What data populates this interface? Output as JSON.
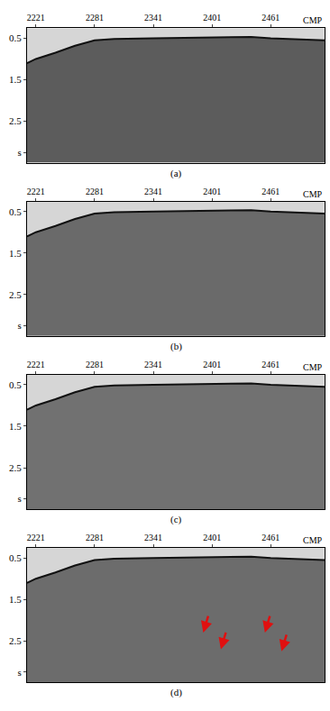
{
  "chart_data": [
    {
      "type": "area",
      "caption": "(a)",
      "x_label": "CMP",
      "color": "#5c5c5c",
      "x": [
        2212,
        2221,
        2241,
        2261,
        2281,
        2301,
        2341,
        2401,
        2441,
        2461,
        2516
      ],
      "values": [
        1.1,
        1.0,
        0.85,
        0.68,
        0.55,
        0.52,
        0.5,
        0.48,
        0.47,
        0.5,
        0.55
      ],
      "xlim": [
        2212,
        2516
      ],
      "xticks": [
        2221,
        2281,
        2341,
        2401,
        2461
      ],
      "ylim": [
        0.26,
        3.5
      ],
      "yticks": [
        0.5,
        1.5,
        2.5,
        {
          "value": 3.25,
          "label": "s"
        }
      ]
    },
    {
      "type": "area",
      "caption": "(b)",
      "x_label": "CMP",
      "color": "#6a6a6a",
      "x": [
        2212,
        2221,
        2241,
        2261,
        2281,
        2301,
        2341,
        2401,
        2441,
        2461,
        2516
      ],
      "values": [
        1.1,
        1.0,
        0.85,
        0.68,
        0.55,
        0.52,
        0.5,
        0.48,
        0.47,
        0.5,
        0.55
      ],
      "xlim": [
        2212,
        2516
      ],
      "xticks": [
        2221,
        2281,
        2341,
        2401,
        2461
      ],
      "ylim": [
        0.26,
        3.5
      ],
      "yticks": [
        0.5,
        1.5,
        2.5,
        {
          "value": 3.25,
          "label": "s"
        }
      ]
    },
    {
      "type": "area",
      "caption": "(c)",
      "x_label": "CMP",
      "color": "#717171",
      "x": [
        2212,
        2221,
        2241,
        2261,
        2281,
        2301,
        2341,
        2401,
        2441,
        2461,
        2516
      ],
      "values": [
        1.1,
        1.0,
        0.85,
        0.68,
        0.55,
        0.52,
        0.5,
        0.48,
        0.47,
        0.5,
        0.55
      ],
      "xlim": [
        2212,
        2516
      ],
      "xticks": [
        2221,
        2281,
        2341,
        2401,
        2461
      ],
      "ylim": [
        0.26,
        3.5
      ],
      "yticks": [
        0.5,
        1.5,
        2.5,
        {
          "value": 3.25,
          "label": "s"
        }
      ]
    },
    {
      "type": "area",
      "caption": "(d)",
      "x_label": "CMP",
      "color": "#6c6c6c",
      "x": [
        2212,
        2221,
        2241,
        2261,
        2281,
        2301,
        2341,
        2401,
        2441,
        2461,
        2516
      ],
      "values": [
        1.1,
        1.0,
        0.85,
        0.68,
        0.55,
        0.52,
        0.5,
        0.48,
        0.47,
        0.5,
        0.55
      ],
      "xlim": [
        2212,
        2516
      ],
      "xticks": [
        2221,
        2281,
        2341,
        2401,
        2461
      ],
      "ylim": [
        0.26,
        3.5
      ],
      "yticks": [
        0.5,
        1.5,
        2.5,
        {
          "value": 3.25,
          "label": "s"
        }
      ],
      "arrows": [
        {
          "x": 2392,
          "y": 2.3
        },
        {
          "x": 2410,
          "y": 2.7
        },
        {
          "x": 2455,
          "y": 2.3
        },
        {
          "x": 2472,
          "y": 2.75
        }
      ],
      "arrow_color": "#e01010"
    }
  ]
}
